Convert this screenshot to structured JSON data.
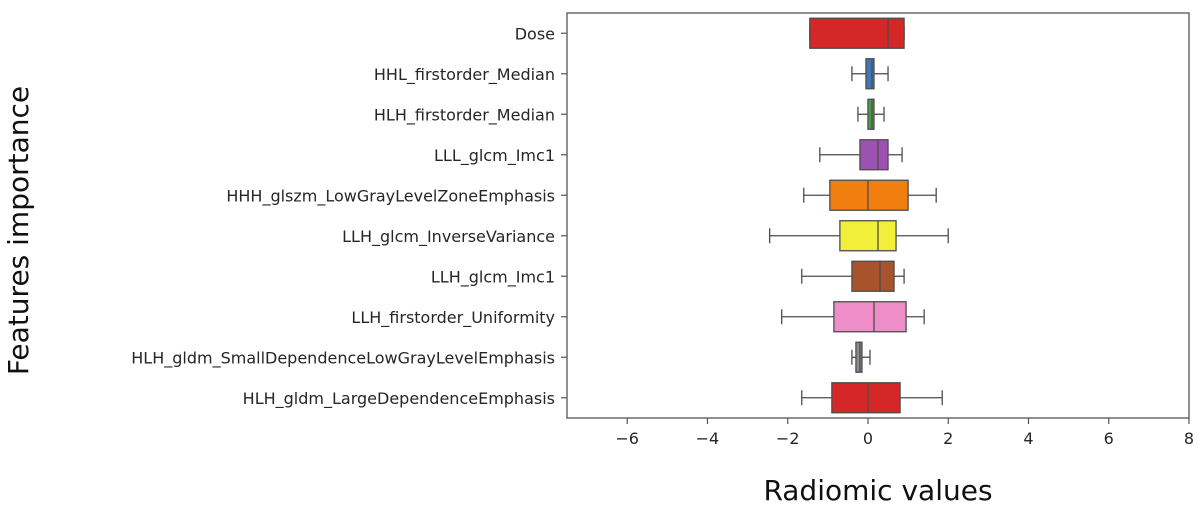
{
  "chart_data": {
    "type": "boxplot",
    "orientation": "horizontal",
    "xlabel": "Radiomic values",
    "ylabel": "Features importance",
    "xlim": [
      -7.5,
      8.0
    ],
    "xticks": [
      -6,
      -4,
      -2,
      0,
      2,
      4,
      6,
      8
    ],
    "xtick_labels": [
      "−6",
      "−4",
      "−2",
      "0",
      "2",
      "4",
      "6",
      "8"
    ],
    "grid": false,
    "categories": [
      "Dose",
      "HHL_firstorder_Median",
      "HLH_firstorder_Median",
      "LLL_glcm_Imc1",
      "HHH_glszm_LowGrayLevelZoneEmphasis",
      "LLH_glcm_InverseVariance",
      "LLH_glcm_Imc1",
      "LLH_firstorder_Uniformity",
      "HLH_gldm_SmallDependenceLowGrayLevelEmphasis",
      "HLH_gldm_LargeDependenceEmphasis"
    ],
    "boxes": [
      {
        "min": -1.45,
        "q1": -1.45,
        "median": 0.5,
        "q3": 0.9,
        "max": 0.9,
        "color": "#d62728"
      },
      {
        "min": -0.4,
        "q1": -0.05,
        "median": 0.1,
        "q3": 0.15,
        "max": 0.5,
        "color": "#3a78b8"
      },
      {
        "min": -0.25,
        "q1": 0.0,
        "median": 0.1,
        "q3": 0.15,
        "max": 0.4,
        "color": "#4a9d45"
      },
      {
        "min": -1.2,
        "q1": -0.2,
        "median": 0.25,
        "q3": 0.5,
        "max": 0.85,
        "color": "#9b52b0"
      },
      {
        "min": -1.6,
        "q1": -0.95,
        "median": 0.0,
        "q3": 1.0,
        "max": 1.7,
        "color": "#f07f0f"
      },
      {
        "min": -2.45,
        "q1": -0.7,
        "median": 0.25,
        "q3": 0.7,
        "max": 2.0,
        "color": "#f2ef3a"
      },
      {
        "min": -1.65,
        "q1": -0.4,
        "median": 0.3,
        "q3": 0.65,
        "max": 0.9,
        "color": "#a7532b"
      },
      {
        "min": -2.15,
        "q1": -0.85,
        "median": 0.15,
        "q3": 0.95,
        "max": 1.4,
        "color": "#ee8ec8"
      },
      {
        "min": -0.4,
        "q1": -0.3,
        "median": -0.2,
        "q3": -0.15,
        "max": 0.05,
        "color": "#8c8c8c"
      },
      {
        "min": -1.65,
        "q1": -0.9,
        "median": 0.0,
        "q3": 0.8,
        "max": 1.85,
        "color": "#d62728"
      }
    ]
  }
}
